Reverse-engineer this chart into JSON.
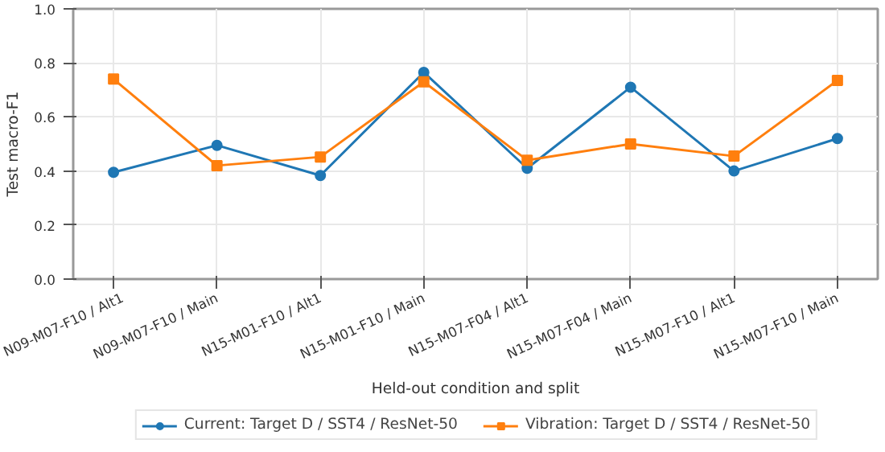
{
  "chart_data": {
    "type": "line",
    "xlabel": "Held-out condition and split",
    "ylabel": "Test macro-F1",
    "categories": [
      "N09-M07-F10 / Alt1",
      "N09-M07-F10 / Main",
      "N15-M01-F10 / Alt1",
      "N15-M01-F10 / Main",
      "N15-M07-F04 / Alt1",
      "N15-M07-F04 / Main",
      "N15-M07-F10 / Alt1",
      "N15-M07-F10 / Main"
    ],
    "series": [
      {
        "name": "Current: Target D / SST4 / ResNet-50",
        "color": "#1f77b4",
        "marker": "circle",
        "values": [
          0.395,
          0.495,
          0.383,
          0.765,
          0.41,
          0.71,
          0.4,
          0.52
        ]
      },
      {
        "name": "Vibration: Target D / SST4 / ResNet-50",
        "color": "#ff7f0e",
        "marker": "square",
        "values": [
          0.74,
          0.42,
          0.452,
          0.73,
          0.44,
          0.5,
          0.455,
          0.735
        ]
      }
    ],
    "ylim": [
      0.0,
      1.0
    ],
    "yticks": [
      "0.0",
      0.2,
      0.4,
      0.6,
      0.8,
      "1.0"
    ],
    "grid": true,
    "legend": "bottom",
    "line_style": "solid"
  }
}
